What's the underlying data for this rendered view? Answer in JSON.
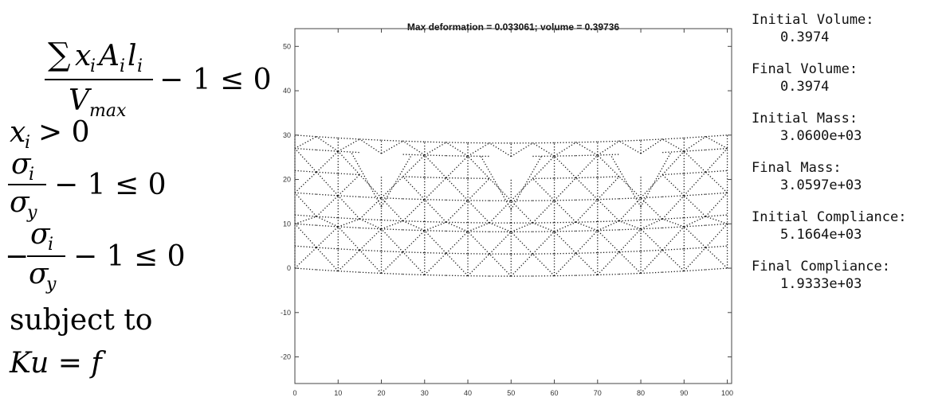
{
  "equations": {
    "line1_sum": "∑",
    "line1_num": "x",
    "line1_num_sub_i": "i",
    "line1_A": "A",
    "line1_l": "l",
    "line1_den": "V",
    "line1_den_sub": "max",
    "line1_rhs": "− 1 ≤ 0",
    "line2": "x",
    "line2_rhs": "> 0",
    "line3_num": "σ",
    "line3_den": "σ",
    "line3_den_sub": "y",
    "line3_rhs": "− 1 ≤ 0",
    "line4_minus": "−",
    "line4_num": "σ",
    "line4_den": "σ",
    "line4_den_sub": "y",
    "line4_rhs": "− 1 ≤ 0",
    "line5": "subject to",
    "line6": "Ku = f"
  },
  "plot": {
    "title": "Max deformation = 0.033061; volume = 0.39736",
    "chart_data": {
      "type": "scatter",
      "title": "Max deformation = 0.033061; volume = 0.39736",
      "xlim": [
        0,
        101
      ],
      "ylim": [
        -26,
        54
      ],
      "xticks": [
        0,
        10,
        20,
        30,
        40,
        50,
        60,
        70,
        80,
        90,
        100
      ],
      "yticks": [
        -20,
        -10,
        0,
        10,
        20,
        30,
        40,
        50
      ],
      "grid": false
    }
  },
  "stats": [
    {
      "label": "Initial Volume:",
      "value": "0.3974"
    },
    {
      "label": "Final Volume:",
      "value": "0.3974"
    },
    {
      "label": "Initial Mass:",
      "value": "3.0600e+03"
    },
    {
      "label": "Final Mass:",
      "value": "3.0597e+03"
    },
    {
      "label": "Initial Compliance:",
      "value": "5.1664e+03"
    },
    {
      "label": "Final Compliance:",
      "value": "1.9333e+03"
    }
  ]
}
